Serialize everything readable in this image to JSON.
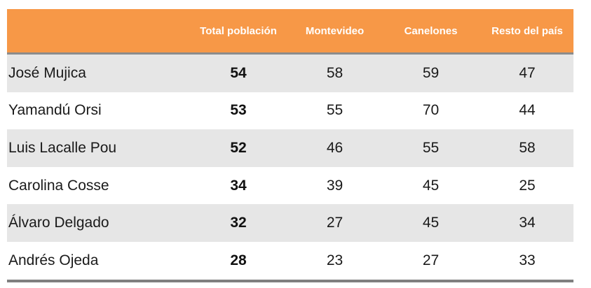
{
  "chart_data": {
    "type": "table",
    "columns": [
      "",
      "Total población",
      "Montevideo",
      "Canelones",
      "Resto del país"
    ],
    "rows": [
      {
        "name": "José Mujica",
        "values": [
          "54",
          "58",
          "59",
          "47"
        ]
      },
      {
        "name": "Yamandú Orsi",
        "values": [
          "53",
          "55",
          "70",
          "44"
        ]
      },
      {
        "name": "Luis Lacalle Pou",
        "values": [
          "52",
          "46",
          "55",
          "58"
        ]
      },
      {
        "name": "Carolina Cosse",
        "values": [
          "34",
          "39",
          "45",
          "25"
        ]
      },
      {
        "name": "Álvaro Delgado",
        "values": [
          "32",
          "27",
          "45",
          "34"
        ]
      },
      {
        "name": "Andrés Ojeda",
        "values": [
          "28",
          "23",
          "27",
          "33"
        ]
      }
    ],
    "colors": {
      "header_bg": "#f79847",
      "header_text": "#ffffff",
      "row_shaded": "#e6e6e6",
      "row_plain": "#ffffff",
      "rule": "#8c8c8c"
    }
  }
}
